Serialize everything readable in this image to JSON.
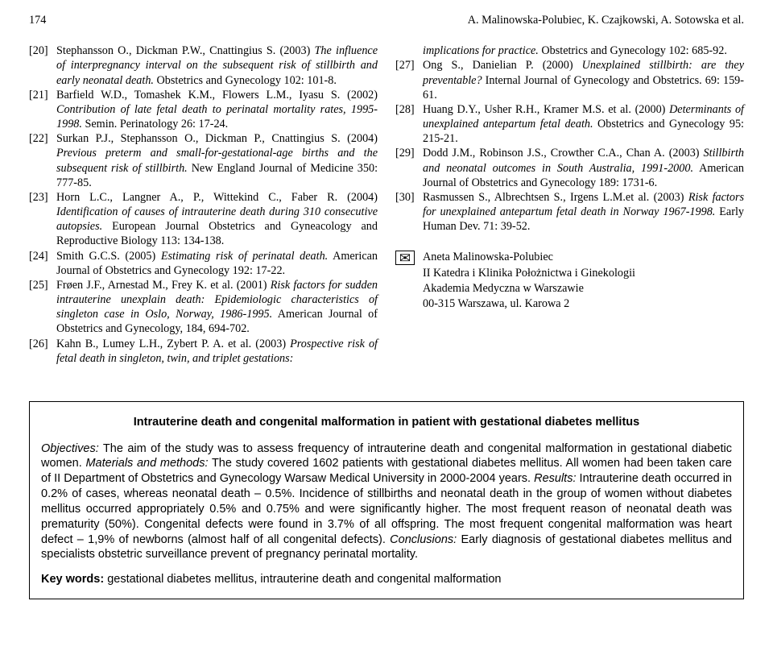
{
  "header": {
    "page_number": "174",
    "running_head": "A. Malinowska-Polubiec, K. Czajkowski, A. Sotowska et al."
  },
  "refs_left": [
    {
      "num": "[20]",
      "body_parts": [
        {
          "t": "Stephansson O., Dickman P.W., Cnattingius S. (2003) ",
          "i": false
        },
        {
          "t": "The influence of interpregnancy interval on the subsequent risk of stillbirth and early neonatal death.",
          "i": true
        },
        {
          "t": " Obstetrics and Gynecology 102: 101-8.",
          "i": false
        }
      ]
    },
    {
      "num": "[21]",
      "body_parts": [
        {
          "t": "Barfield W.D., Tomashek K.M., Flowers L.M., Iyasu S. (2002) ",
          "i": false
        },
        {
          "t": "Contribution of late fetal death to perinatal mortality rates, 1995-1998.",
          "i": true
        },
        {
          "t": " Semin. Perinatology 26: 17-24.",
          "i": false
        }
      ]
    },
    {
      "num": "[22]",
      "body_parts": [
        {
          "t": "Surkan P.J., Stephansson O., Dickman P., Cnattingius S. (2004) ",
          "i": false
        },
        {
          "t": "Previous preterm and small-for-gestational-age births and the subsequent risk of stillbirth.",
          "i": true
        },
        {
          "t": " New England Journal of Medicine 350: 777-85.",
          "i": false
        }
      ]
    },
    {
      "num": "[23]",
      "body_parts": [
        {
          "t": "Horn L.C., Langner A., P., Wittekind C., Faber R. (2004) ",
          "i": false
        },
        {
          "t": "Identification of causes of intrauterine death during 310 consecutive autopsies.",
          "i": true
        },
        {
          "t": " European Journal Obstetrics and Gyneacology and Reproductive Biology 113: 134-138.",
          "i": false
        }
      ]
    },
    {
      "num": "[24]",
      "body_parts": [
        {
          "t": "Smith G.C.S. (2005) ",
          "i": false
        },
        {
          "t": "Estimating risk of perinatal death.",
          "i": true
        },
        {
          "t": " American Journal of Obstetrics and Gynecology 192: 17-22.",
          "i": false
        }
      ]
    },
    {
      "num": "[25]",
      "body_parts": [
        {
          "t": "Frøen J.F., Arnestad M., Frey K. et al. (2001) ",
          "i": false
        },
        {
          "t": "Risk factors for sudden intrauterine unexplain death: Epidemiologic characteristics of singleton case in Oslo, Norway, 1986-1995.",
          "i": true
        },
        {
          "t": " American Journal of Obstetrics and Gynecology, 184, 694-702.",
          "i": false
        }
      ]
    },
    {
      "num": "[26]",
      "body_parts": [
        {
          "t": "Kahn B., Lumey L.H., Zybert P. A. et al. (2003) ",
          "i": false
        },
        {
          "t": "Prospective risk of fetal death in singleton, twin, and triplet gestations:",
          "i": true
        }
      ]
    }
  ],
  "refs_right_first": {
    "body_parts": [
      {
        "t": "implications for practice.",
        "i": true
      },
      {
        "t": " Obstetrics and Gynecology 102: 685-92.",
        "i": false
      }
    ]
  },
  "refs_right": [
    {
      "num": "[27]",
      "body_parts": [
        {
          "t": "Ong S., Danielian P. (2000) ",
          "i": false
        },
        {
          "t": "Unexplained stillbirth: are they preventable?",
          "i": true
        },
        {
          "t": " Internal Journal of Gynecology and Obstetrics. 69: 159-61.",
          "i": false
        }
      ]
    },
    {
      "num": "[28]",
      "body_parts": [
        {
          "t": "Huang D.Y., Usher R.H., Kramer M.S. et al. (2000) ",
          "i": false
        },
        {
          "t": "Determinants of unexplained antepartum fetal death.",
          "i": true
        },
        {
          "t": " Obstetrics and Gynecology 95: 215-21.",
          "i": false
        }
      ]
    },
    {
      "num": "[29]",
      "body_parts": [
        {
          "t": "Dodd J.M., Robinson J.S., Crowther C.A., Chan A. (2003) ",
          "i": false
        },
        {
          "t": "Stillbirth and neonatal outcomes in South Australia, 1991-2000.",
          "i": true
        },
        {
          "t": " American Journal of Obstetrics and Gynecology 189: 1731-6.",
          "i": false
        }
      ]
    },
    {
      "num": "[30]",
      "body_parts": [
        {
          "t": "Rasmussen S., Albrechtsen S., Irgens L.M.et al. (2003) ",
          "i": false
        },
        {
          "t": "Risk factors for unexplained antepartum fetal death in Norway 1967-1998.",
          "i": true
        },
        {
          "t": " Early Human Dev. 71: 39-52.",
          "i": false
        }
      ]
    }
  ],
  "correspondence": {
    "icon": "✉",
    "lines": [
      "Aneta Malinowska-Polubiec",
      "II Katedra i Klinika Położnictwa i Ginekologii",
      "Akademia Medyczna w Warszawie",
      "00-315 Warszawa, ul. Karowa 2"
    ]
  },
  "abstract": {
    "title": "Intrauterine death and congenital malformation in patient with gestational diabetes mellitus",
    "sections": {
      "objectives_label": "Objectives:",
      "objectives": " The aim of the study was to assess frequency of intrauterine death and congenital malformation in gestational diabetic women. ",
      "materials_label": "Materials and methods:",
      "materials": " The study covered 1602 patients with gestational diabetes mellitus. All women had been taken care of II Department of Obstetrics and Gynecology Warsaw Medical University in 2000-2004 years. ",
      "results_label": "Results:",
      "results": " Intrauterine death occurred in 0.2% of cases, whereas neonatal death – 0.5%. Incidence of stillbirths and neonatal death in the group of women without diabetes mellitus occurred appropriately 0.5% and 0.75% and were significantly higher. The most frequent reason of neonatal death was prematurity (50%). Congenital defects were found in 3.7% of all offspring. The most frequent congenital malformation was heart defect – 1,9% of newborns (almost half of all congenital defects). ",
      "conclusions_label": "Conclusions:",
      "conclusions": " Early diagnosis of gestational diabetes mellitus and specialists obstetric surveillance prevent of pregnancy perinatal mortality."
    },
    "keywords_label": "Key words:",
    "keywords": " gestational diabetes mellitus, intrauterine death and congenital malformation"
  }
}
